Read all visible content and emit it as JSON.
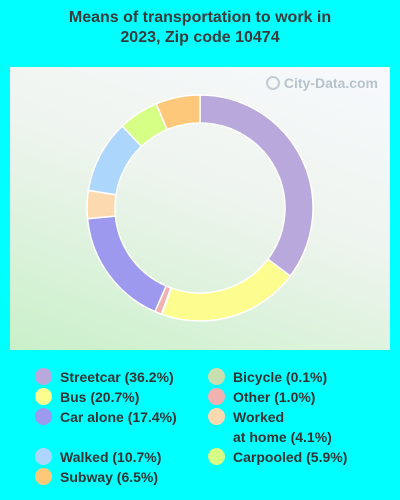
{
  "title_line1": "Means of transportation to work in",
  "title_line2": "2023, Zip code 10474",
  "watermark": "City-Data.com",
  "chart_data": {
    "type": "pie",
    "style": "donut",
    "slices": [
      {
        "label": "Streetcar",
        "value": 36.2,
        "color": "#b9a8dc",
        "legend_text": "Streetcar (36.2%)"
      },
      {
        "label": "Bus",
        "value": 20.7,
        "color": "#fdfd8f",
        "legend_text": "Bus (20.7%)"
      },
      {
        "label": "Bicycle",
        "value": 0.1,
        "color": "#c8e0b0",
        "legend_text": "Bicycle (0.1%)"
      },
      {
        "label": "Other",
        "value": 1.0,
        "color": "#f2b1b1",
        "legend_text": "Other (1.0%)"
      },
      {
        "label": "Car alone",
        "value": 17.4,
        "color": "#9d99ee",
        "legend_text": "Car alone (17.4%)"
      },
      {
        "label": "Worked at home",
        "value": 4.1,
        "color": "#fdd9b0",
        "legend_lines": [
          "Worked",
          "at home (4.1%)"
        ]
      },
      {
        "label": "Walked",
        "value": 10.7,
        "color": "#acd6fb",
        "legend_text": "Walked (10.7%)"
      },
      {
        "label": "Carpooled",
        "value": 5.9,
        "color": "#d6ff85",
        "legend_text": "Carpooled (5.9%)"
      },
      {
        "label": "Subway",
        "value": 6.5,
        "color": "#fdc87a",
        "legend_text": "Subway (6.5%)"
      }
    ],
    "legend_order": [
      "Streetcar",
      "Bicycle",
      "Bus",
      "Other",
      "Car alone",
      "Worked at home",
      "Walked",
      "Carpooled",
      "Subway"
    ]
  }
}
